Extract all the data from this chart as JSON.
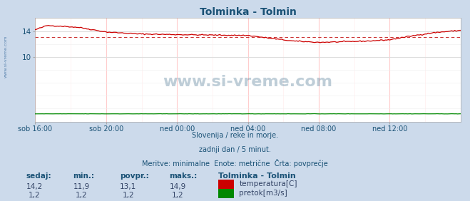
{
  "title": "Tolminka - Tolmin",
  "title_color": "#1a5276",
  "bg_color": "#ccdaeb",
  "plot_bg_color": "#ffffff",
  "watermark_text": "www.si-vreme.com",
  "watermark_color": "#1a5276",
  "ylabel_color": "#1a5276",
  "grid_color_h": "#dddddd",
  "grid_color_v": "#ffcccc",
  "temp_line_color": "#cc0000",
  "flow_line_color": "#008800",
  "avg_line_color": "#cc3333",
  "x_tick_labels": [
    "sob 16:00",
    "sob 20:00",
    "ned 00:00",
    "ned 04:00",
    "ned 08:00",
    "ned 12:00"
  ],
  "x_tick_positions": [
    0,
    48,
    96,
    144,
    192,
    240
  ],
  "x_max": 288,
  "ylim": [
    0,
    16
  ],
  "yticks": [
    10,
    14
  ],
  "temp_avg": 13.1,
  "info_line1": "Slovenija / reke in morje.",
  "info_line2": "zadnji dan / 5 minut.",
  "info_line3": "Meritve: minimalne  Enote: metrične  Črta: povprečje",
  "legend_title": "Tolminka - Tolmin",
  "legend_label1": "temperatura[C]",
  "legend_label2": "pretok[m3/s]",
  "table_headers": [
    "sedaj:",
    "min.:",
    "povpr.:",
    "maks.:"
  ],
  "table_row1": [
    "14,2",
    "11,9",
    "13,1",
    "14,9"
  ],
  "table_row2": [
    "1,2",
    "1,2",
    "1,2",
    "1,2"
  ],
  "left_label_color": "#336699",
  "axis_arrow_color": "#cc0000"
}
